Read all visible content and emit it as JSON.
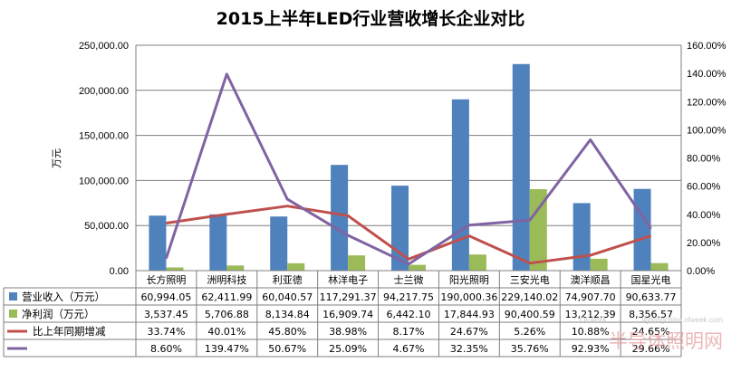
{
  "chart_data": {
    "type": "bar",
    "title": "2015上半年LED行业营收增长企业对比",
    "ylabel": "万元",
    "ylim": [
      0,
      250000
    ],
    "y2lim": [
      0,
      1.6
    ],
    "y_ticks": [
      "0.00",
      "50,000.00",
      "100,000.00",
      "150,000.00",
      "200,000.00",
      "250,000.00"
    ],
    "y2_ticks": [
      "0.00%",
      "20.00%",
      "40.00%",
      "60.00%",
      "80.00%",
      "100.00%",
      "120.00%",
      "140.00%",
      "160.00%"
    ],
    "grid": true,
    "legend_placement": "data-table",
    "categories": [
      "长方照明",
      "洲明科技",
      "利亚德",
      "林洋电子",
      "士兰微",
      "阳光照明",
      "三安光电",
      "澳洋顺昌",
      "国星光电"
    ],
    "series": [
      {
        "name": "营业收入（万元）",
        "kind": "bar",
        "axis": "left",
        "color": "#4f81bd",
        "values": [
          60994.05,
          62411.99,
          60040.57,
          117291.37,
          94217.75,
          190000.36,
          229140.02,
          74907.7,
          90633.77
        ],
        "labels": [
          "60,994.05",
          "62,411.99",
          "60,040.57",
          "117,291.37",
          "94,217.75",
          "190,000.36",
          "229,140.02",
          "74,907.70",
          "90,633.77"
        ]
      },
      {
        "name": "净利润（万元）",
        "kind": "bar",
        "axis": "left",
        "color": "#9bbb59",
        "values": [
          3537.45,
          5706.88,
          8134.84,
          16909.74,
          6442.1,
          17844.93,
          90400.59,
          13212.39,
          8356.57
        ],
        "labels": [
          "3,537.45",
          "5,706.88",
          "8,134.84",
          "16,909.74",
          "6,442.10",
          "17,844.93",
          "90,400.59",
          "13,212.39",
          "8,356.57"
        ]
      },
      {
        "name": "比上年同期增减",
        "kind": "line",
        "axis": "right",
        "color": "#c0504d",
        "values": [
          0.3374,
          0.4001,
          0.458,
          0.3898,
          0.0817,
          0.2467,
          0.0526,
          0.1088,
          0.2465
        ],
        "labels": [
          "33.74%",
          "40.01%",
          "45.80%",
          "38.98%",
          "8.17%",
          "24.67%",
          "5.26%",
          "10.88%",
          "24.65%"
        ]
      },
      {
        "name": "",
        "kind": "line",
        "axis": "right",
        "color": "#8064a2",
        "values": [
          0.086,
          1.3947,
          0.5067,
          0.2509,
          0.0467,
          0.3235,
          0.3576,
          0.9293,
          0.2966
        ],
        "labels": [
          "8.60%",
          "139.47%",
          "50.67%",
          "25.09%",
          "4.67%",
          "32.35%",
          "35.76%",
          "92.93%",
          "29.66%"
        ]
      }
    ]
  },
  "watermark": {
    "main": "半导体照明网",
    "small": "lightingchina.ofweek.com",
    "brand": "OFweek"
  }
}
